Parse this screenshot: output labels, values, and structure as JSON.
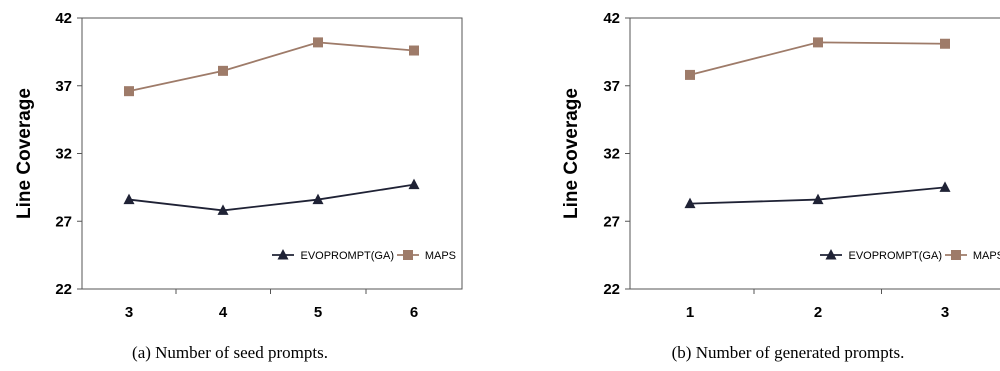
{
  "chart_data": [
    {
      "type": "line",
      "caption": "(a) Number of seed prompts.",
      "ylabel": "Line Coverage",
      "xlabel": "",
      "categories": [
        "3",
        "4",
        "5",
        "6"
      ],
      "ylim": [
        22,
        42
      ],
      "yticks": [
        22,
        27,
        32,
        37,
        42
      ],
      "legend_position": "bottom-right",
      "series": [
        {
          "name": "EVOPROMPT(GA)",
          "color": "#1f2235",
          "marker": "triangle",
          "values": [
            28.6,
            27.8,
            28.6,
            29.7
          ]
        },
        {
          "name": "MAPS",
          "color": "#9e7b69",
          "marker": "square",
          "values": [
            36.6,
            38.1,
            40.2,
            39.6
          ]
        }
      ]
    },
    {
      "type": "line",
      "caption": "(b) Number of generated prompts.",
      "ylabel": "Line Coverage",
      "xlabel": "",
      "categories": [
        "1",
        "2",
        "3"
      ],
      "ylim": [
        22,
        42
      ],
      "yticks": [
        22,
        27,
        32,
        37,
        42
      ],
      "legend_position": "bottom-right",
      "series": [
        {
          "name": "EVOPROMPT(GA)",
          "color": "#1f2235",
          "marker": "triangle",
          "values": [
            28.3,
            28.6,
            29.5
          ]
        },
        {
          "name": "MAPS",
          "color": "#9e7b69",
          "marker": "square",
          "values": [
            37.8,
            40.2,
            40.1
          ]
        }
      ]
    }
  ]
}
